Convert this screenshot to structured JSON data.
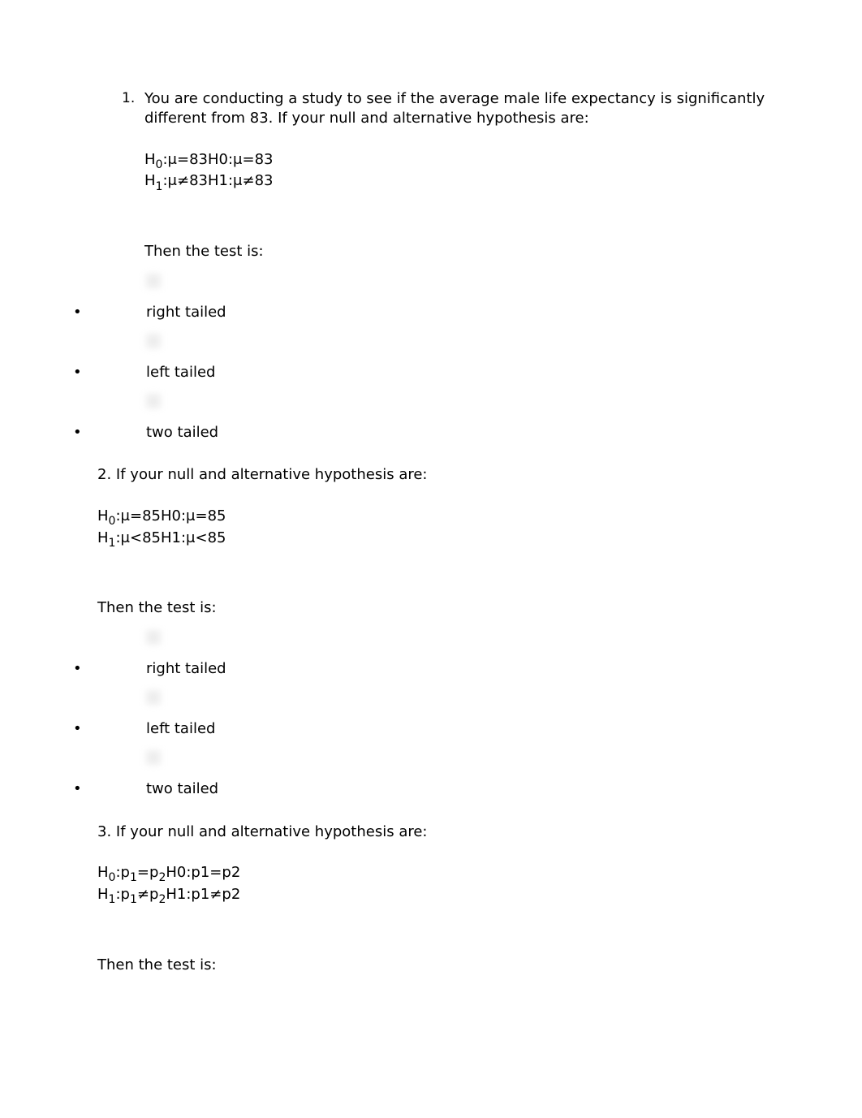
{
  "q1": {
    "number": "1.",
    "intro": "You are conducting a study to see if the average male life expectancy is significantly different from 83. If your null and alternative hypothesis are:",
    "h0_label": "H",
    "h0_sub": "0",
    "h0_rest": ":μ=83H0:μ=83",
    "h1_label": "H",
    "h1_sub": "1",
    "h1_rest": ":μ≠83H1:μ≠83",
    "then": "Then the test is:",
    "options": [
      "right tailed",
      "left tailed",
      "two tailed"
    ]
  },
  "q2": {
    "number": "2.",
    "intro": "If your null and alternative hypothesis are:",
    "h0_label": "H",
    "h0_sub": "0",
    "h0_rest": ":μ=85H0:μ=85",
    "h1_label": "H",
    "h1_sub": "1",
    "h1_rest": ":μ<85H1:μ<85",
    "then": "Then the test is:",
    "options": [
      "right tailed",
      "left tailed",
      "two tailed"
    ]
  },
  "q3": {
    "number": "3.",
    "intro": "If your null and alternative hypothesis are:",
    "h0_label": "H",
    "h0_sub": "0",
    "h0_mid_a": ":p",
    "h0_sub_a": "1",
    "h0_mid_b": "=p",
    "h0_sub_b": "2",
    "h0_tail": "H0:p1=p2",
    "h1_label": "H",
    "h1_sub": "1",
    "h1_mid_a": ":p",
    "h1_sub_a": "1",
    "h1_mid_b": "≠p",
    "h1_sub_b": "2",
    "h1_tail": "H1:p1≠p2",
    "then": "Then the test is:"
  },
  "bullet": "•"
}
